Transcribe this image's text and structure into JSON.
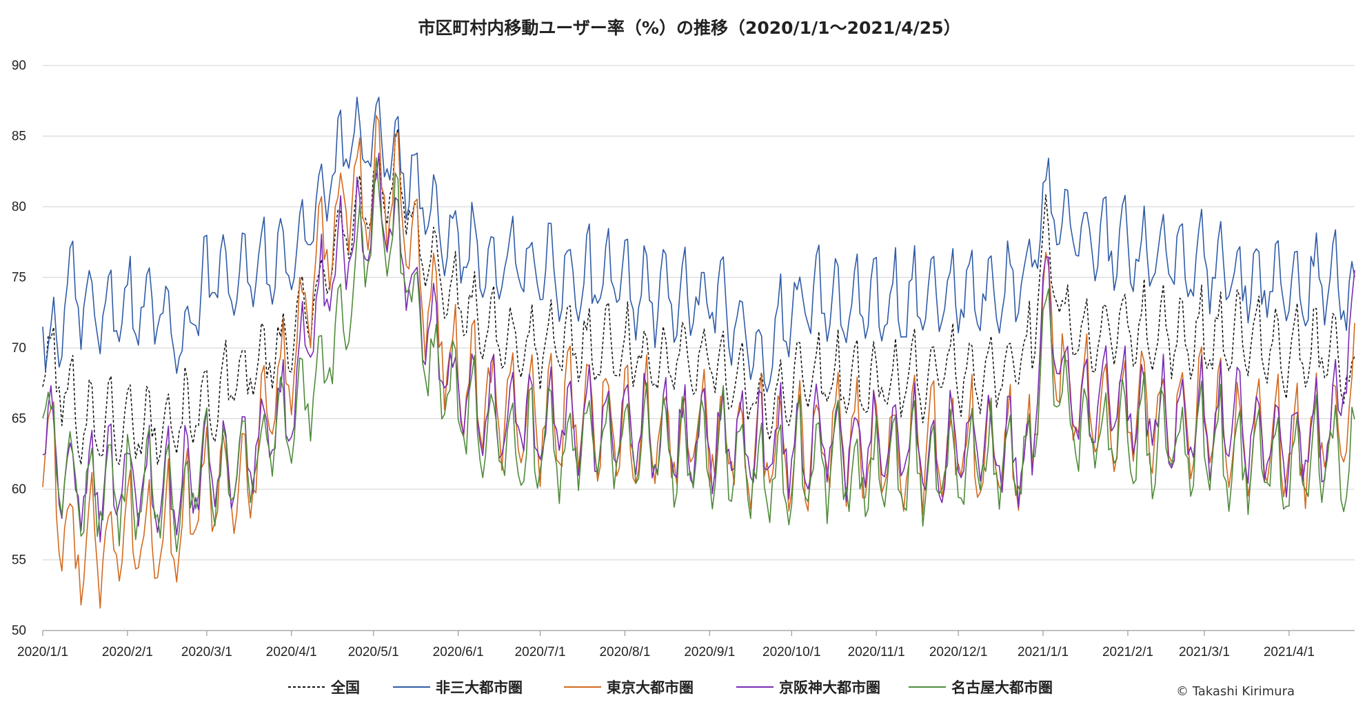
{
  "chart_data": {
    "type": "line",
    "title": "市区町村内移動ユーザー率（%）の推移（2020/1/1～2021/4/25）",
    "xlabel": "",
    "ylabel": "",
    "ylim": [
      50,
      90
    ],
    "yticks": [
      50,
      55,
      60,
      65,
      70,
      75,
      80,
      85,
      90
    ],
    "x_range": [
      "2020-01-01",
      "2021-04-25"
    ],
    "xtick_labels": [
      "2020/1/1",
      "2020/2/1",
      "2020/3/1",
      "2020/4/1",
      "2020/5/1",
      "2020/6/1",
      "2020/7/1",
      "2020/8/1",
      "2020/9/1",
      "2020/10/1",
      "2020/11/1",
      "2020/12/1",
      "2021/1/1",
      "2021/2/1",
      "2021/3/1",
      "2021/4/1"
    ],
    "xtick_dates": [
      "2020-01-01",
      "2020-02-01",
      "2020-03-01",
      "2020-04-01",
      "2020-05-01",
      "2020-06-01",
      "2020-07-01",
      "2020-08-01",
      "2020-09-01",
      "2020-10-01",
      "2020-11-01",
      "2020-12-01",
      "2021-01-01",
      "2021-02-01",
      "2021-03-01",
      "2021-04-01"
    ],
    "grid": "horizontal",
    "legend_position": "bottom",
    "weekly_pattern_note": "daily values; weekly oscillation",
    "series": [
      {
        "name": "全国",
        "color": "#111111",
        "dash": "dashed",
        "x": [
          "2020-01-01",
          "2020-01-15",
          "2020-01-31",
          "2020-02-15",
          "2020-03-01",
          "2020-03-15",
          "2020-03-31",
          "2020-04-10",
          "2020-04-20",
          "2020-05-01",
          "2020-05-10",
          "2020-05-20",
          "2020-05-31",
          "2020-06-15",
          "2020-07-01",
          "2020-07-15",
          "2020-08-01",
          "2020-08-15",
          "2020-09-01",
          "2020-09-20",
          "2020-10-01",
          "2020-10-15",
          "2020-11-01",
          "2020-11-15",
          "2020-12-01",
          "2020-12-15",
          "2020-12-28",
          "2021-01-01",
          "2021-01-10",
          "2021-01-20",
          "2021-02-01",
          "2021-02-15",
          "2021-03-01",
          "2021-03-15",
          "2021-04-01",
          "2021-04-15",
          "2021-04-25"
        ],
        "values": [
          70.0,
          65.0,
          64.5,
          65.0,
          66.0,
          68.0,
          70.5,
          74.0,
          78.5,
          81.0,
          82.0,
          77.0,
          73.5,
          71.0,
          70.0,
          70.5,
          70.0,
          69.0,
          69.5,
          66.0,
          67.5,
          68.0,
          67.5,
          68.0,
          68.5,
          68.0,
          70.0,
          79.0,
          71.0,
          71.0,
          71.5,
          71.0,
          71.0,
          71.0,
          69.5,
          70.0,
          67.5
        ]
      },
      {
        "name": "非三大都市圏",
        "color": "#2f5ba7",
        "dash": "solid",
        "x": [
          "2020-01-01",
          "2020-01-03",
          "2020-01-10",
          "2020-01-20",
          "2020-01-31",
          "2020-02-15",
          "2020-02-21",
          "2020-03-01",
          "2020-03-15",
          "2020-03-31",
          "2020-04-10",
          "2020-04-20",
          "2020-05-01",
          "2020-05-10",
          "2020-05-20",
          "2020-05-31",
          "2020-06-15",
          "2020-07-01",
          "2020-07-15",
          "2020-08-01",
          "2020-08-15",
          "2020-09-01",
          "2020-09-20",
          "2020-10-01",
          "2020-10-15",
          "2020-11-01",
          "2020-11-15",
          "2020-12-01",
          "2020-12-15",
          "2020-12-28",
          "2021-01-01",
          "2021-01-10",
          "2021-01-20",
          "2021-02-01",
          "2021-02-15",
          "2021-03-01",
          "2021-03-15",
          "2021-04-01",
          "2021-04-15",
          "2021-04-25"
        ],
        "values": [
          73.5,
          68.5,
          74.0,
          72.5,
          73.0,
          73.0,
          70.5,
          75.0,
          76.0,
          76.5,
          80.0,
          84.0,
          85.0,
          84.0,
          80.0,
          77.5,
          76.0,
          75.5,
          75.0,
          74.5,
          73.5,
          74.0,
          69.0,
          73.0,
          73.5,
          73.0,
          73.5,
          74.0,
          74.0,
          75.5,
          81.0,
          78.5,
          77.5,
          77.0,
          76.5,
          76.0,
          75.0,
          74.5,
          75.0,
          73.5
        ]
      },
      {
        "name": "東京大都市圏",
        "color": "#d2691e",
        "dash": "solid",
        "x": [
          "2020-01-01",
          "2020-01-08",
          "2020-01-15",
          "2020-01-31",
          "2020-02-15",
          "2020-03-01",
          "2020-03-15",
          "2020-03-31",
          "2020-04-10",
          "2020-04-20",
          "2020-05-01",
          "2020-05-10",
          "2020-05-20",
          "2020-05-31",
          "2020-06-15",
          "2020-07-01",
          "2020-07-15",
          "2020-08-01",
          "2020-08-15",
          "2020-09-01",
          "2020-09-20",
          "2020-10-01",
          "2020-10-15",
          "2020-11-01",
          "2020-11-15",
          "2020-12-01",
          "2020-12-15",
          "2020-12-28",
          "2021-01-01",
          "2021-01-10",
          "2021-01-20",
          "2021-02-01",
          "2021-02-15",
          "2021-03-01",
          "2021-03-15",
          "2021-04-01",
          "2021-04-15",
          "2021-04-25"
        ],
        "values": [
          65.0,
          58.0,
          56.0,
          56.0,
          57.0,
          60.0,
          61.0,
          68.0,
          76.0,
          80.0,
          82.0,
          80.5,
          74.0,
          68.5,
          66.0,
          65.0,
          65.5,
          65.0,
          64.0,
          64.0,
          63.0,
          63.0,
          63.5,
          62.5,
          63.0,
          63.0,
          63.0,
          62.0,
          75.0,
          67.0,
          66.0,
          66.0,
          65.0,
          65.0,
          64.0,
          63.0,
          64.0,
          67.0
        ]
      },
      {
        "name": "京阪神大都市圏",
        "color": "#7a2bb5",
        "dash": "solid",
        "x": [
          "2020-01-01",
          "2020-01-08",
          "2020-01-15",
          "2020-01-31",
          "2020-02-15",
          "2020-03-01",
          "2020-03-15",
          "2020-03-31",
          "2020-04-10",
          "2020-04-20",
          "2020-05-01",
          "2020-05-10",
          "2020-05-20",
          "2020-05-31",
          "2020-06-15",
          "2020-07-01",
          "2020-07-15",
          "2020-08-01",
          "2020-08-15",
          "2020-09-01",
          "2020-09-20",
          "2020-10-01",
          "2020-10-15",
          "2020-11-01",
          "2020-11-15",
          "2020-12-01",
          "2020-12-15",
          "2020-12-28",
          "2021-01-01",
          "2021-01-10",
          "2021-01-20",
          "2021-02-01",
          "2021-02-15",
          "2021-03-01",
          "2021-03-15",
          "2021-04-01",
          "2021-04-15",
          "2021-04-25"
        ],
        "values": [
          65.5,
          61.0,
          60.5,
          60.5,
          60.5,
          61.5,
          62.5,
          66.0,
          73.0,
          77.0,
          80.0,
          78.0,
          72.0,
          67.0,
          65.5,
          65.0,
          64.5,
          64.5,
          64.0,
          64.0,
          63.0,
          63.5,
          63.5,
          63.0,
          63.0,
          63.0,
          63.0,
          62.5,
          74.0,
          66.5,
          66.0,
          66.0,
          65.0,
          65.0,
          64.5,
          63.5,
          64.0,
          72.0
        ]
      },
      {
        "name": "名古屋大都市圏",
        "color": "#4f8a3a",
        "dash": "solid",
        "x": [
          "2020-01-01",
          "2020-01-08",
          "2020-01-15",
          "2020-01-31",
          "2020-02-15",
          "2020-03-01",
          "2020-03-15",
          "2020-03-31",
          "2020-04-10",
          "2020-04-20",
          "2020-05-01",
          "2020-05-10",
          "2020-05-20",
          "2020-05-31",
          "2020-06-15",
          "2020-07-01",
          "2020-07-15",
          "2020-08-01",
          "2020-08-15",
          "2020-09-01",
          "2020-09-20",
          "2020-10-01",
          "2020-10-15",
          "2020-11-01",
          "2020-11-15",
          "2020-12-01",
          "2020-12-15",
          "2020-12-28",
          "2021-01-01",
          "2021-01-10",
          "2021-01-20",
          "2021-02-01",
          "2021-02-15",
          "2021-03-01",
          "2021-03-15",
          "2021-04-01",
          "2021-04-15",
          "2021-04-25"
        ],
        "values": [
          67.0,
          61.0,
          60.0,
          60.0,
          59.5,
          61.0,
          62.0,
          64.5,
          68.0,
          72.0,
          80.0,
          78.0,
          70.0,
          66.0,
          64.0,
          63.0,
          63.5,
          63.5,
          63.0,
          63.0,
          61.5,
          62.0,
          62.0,
          61.0,
          61.5,
          62.0,
          62.0,
          61.5,
          73.0,
          65.0,
          64.0,
          64.0,
          63.0,
          63.0,
          62.5,
          62.0,
          62.5,
          62.0
        ]
      }
    ]
  },
  "credit": "© Takashi Kirimura"
}
